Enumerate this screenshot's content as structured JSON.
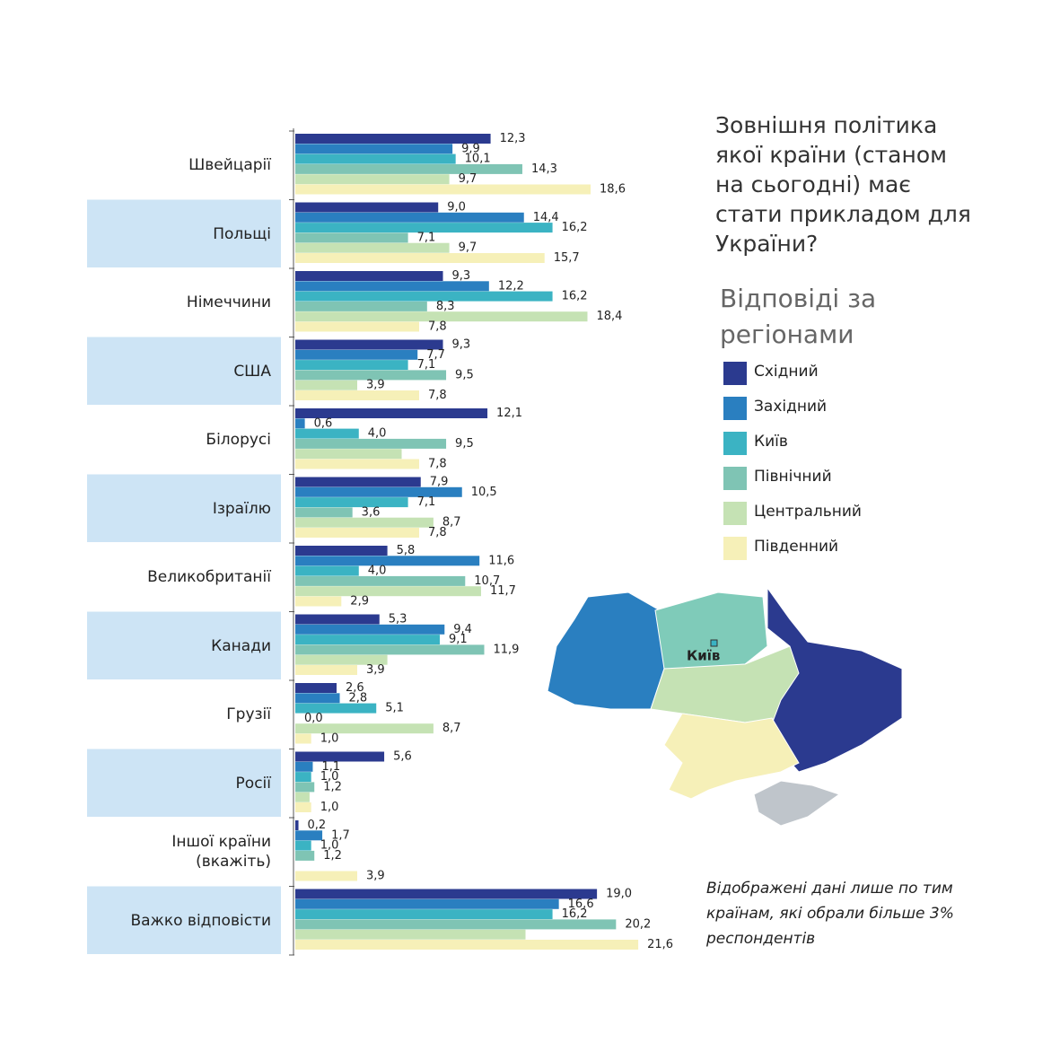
{
  "chart_data": {
    "type": "bar",
    "orientation": "horizontal",
    "title": "Зовнішня політика якої країни (станом на сьогодні) має стати прикладом для України?",
    "legend_title": "Відповіді за регіонами",
    "note": "Відображені дані лише по тим країнам, які обрали більше 3% респондентів",
    "map_label": "Київ",
    "categories": [
      "Швейцарії",
      "Польщі",
      "Німеччини",
      "США",
      "Білорусі",
      "Ізраїлю",
      "Великобританії",
      "Канади",
      "Грузії",
      "Росії",
      "Іншої країни (вкажіть)",
      "Важко відповісти"
    ],
    "series": [
      {
        "name": "Східний",
        "color": "#2b3a8f",
        "values": [
          12.3,
          9.0,
          9.3,
          9.3,
          12.1,
          7.9,
          5.8,
          5.3,
          2.6,
          5.6,
          0.2,
          19.0
        ],
        "value_labels": [
          "12,3",
          "9,0",
          "9,3",
          "9,3",
          "12,1",
          "7,9",
          "5,8",
          "5,3",
          "2,6",
          "5,6",
          "0,2",
          "19,0"
        ]
      },
      {
        "name": "Західний",
        "color": "#2a7fc0",
        "values": [
          9.9,
          14.4,
          12.2,
          7.7,
          0.6,
          10.5,
          11.6,
          9.4,
          2.8,
          1.1,
          1.7,
          16.6
        ],
        "value_labels": [
          "9,9",
          "14,4",
          "12,2",
          "7,7",
          "0,6",
          "10,5",
          "11,6",
          "9,4",
          "2,8",
          "1,1",
          "1,7",
          "16,6"
        ]
      },
      {
        "name": "Київ",
        "color": "#3bb3c3",
        "values": [
          10.1,
          16.2,
          16.2,
          7.1,
          4.0,
          7.1,
          4.0,
          9.1,
          5.1,
          1.0,
          1.0,
          16.2
        ],
        "value_labels": [
          "10,1",
          "16,2",
          "16,2",
          "7,1",
          "4,0",
          "7,1",
          "4,0",
          "9,1",
          "5,1",
          "1,0",
          "1,0",
          "16,2"
        ]
      },
      {
        "name": "Північний",
        "color": "#7fc4b4",
        "values": [
          14.3,
          7.1,
          8.3,
          9.5,
          9.5,
          3.6,
          10.7,
          11.9,
          0.0,
          1.2,
          1.2,
          20.2
        ],
        "value_labels": [
          "14,3",
          "7,1",
          "8,3",
          "9,5",
          "9,5",
          "3,6",
          "10,7",
          "11,9",
          "0,0",
          "1,2",
          "1,2",
          "20,2"
        ]
      },
      {
        "name": "Центральний",
        "color": "#c5e2b4",
        "values": [
          9.7,
          9.7,
          18.4,
          3.9,
          6.7,
          8.7,
          11.7,
          5.8,
          8.7,
          0.9,
          0,
          14.5
        ],
        "value_labels": [
          "9,7",
          "9,7",
          "18,4",
          "3,9",
          null,
          "8,7",
          "11,7",
          null,
          "8,7",
          null,
          null,
          null
        ]
      },
      {
        "name": "Південний",
        "color": "#f6f0b8",
        "values": [
          18.6,
          15.7,
          7.8,
          7.8,
          7.8,
          7.8,
          2.9,
          3.9,
          1.0,
          1.0,
          3.9,
          21.6
        ],
        "value_labels": [
          "18,6",
          "15,7",
          "7,8",
          "7,8",
          "7,8",
          "7,8",
          "2,9",
          "3,9",
          "1,0",
          "1,0",
          "3,9",
          "21,6"
        ]
      }
    ],
    "xlim": [
      0,
      22
    ]
  }
}
